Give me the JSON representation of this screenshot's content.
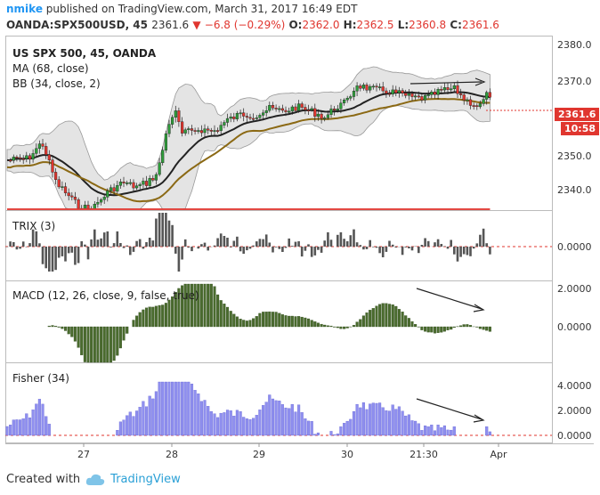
{
  "header": {
    "user": "nmike",
    "published_text": "published on TradingView.com, March 31, 2017 16:49 EDT",
    "symbol_line": "OANDA:SPX500USD, 45",
    "last": "2361.6",
    "change_icon": "triangle-down-icon",
    "change": "−6.8 (−0.29%)",
    "ohlc": [
      {
        "k": "O:",
        "v": "2362.0"
      },
      {
        "k": "H:",
        "v": "2362.5"
      },
      {
        "k": "L:",
        "v": "2360.8"
      },
      {
        "k": "C:",
        "v": "2361.6"
      }
    ]
  },
  "price_pane": {
    "labels": [
      "US SPX 500, 45, OANDA",
      "MA (68, close)",
      "BB (34, close, 2)"
    ],
    "axis_ticks": [
      "2380.0",
      "2370.0",
      "2361.6",
      "2350.0",
      "2340.0"
    ],
    "price_tag": "2361.6",
    "time_tag": "10:58"
  },
  "trix_pane": {
    "label": "TRIX (3)",
    "axis_ticks": [
      "0.0000"
    ]
  },
  "macd_pane": {
    "label": "MACD (12, 26, close, 9, false, true)",
    "axis_ticks": [
      "2.0000",
      "0.0000"
    ]
  },
  "fisher_pane": {
    "label": "Fisher (34)",
    "axis_ticks": [
      "4.0000",
      "2.0000",
      "0.0000"
    ]
  },
  "time_axis": [
    "27",
    "28",
    "29",
    "30",
    "21:30",
    "Apr"
  ],
  "footer": {
    "created_with": "Created with",
    "brand": "TradingView"
  },
  "colors": {
    "up": "#2e9d3a",
    "down": "#e0362f",
    "ma": "#222222",
    "bb": "#8b6914",
    "macd_hist": "#4a6b2e",
    "trix_hist": "#555555",
    "fisher_hist": "#8f8fef",
    "signal": "#e0362f",
    "accent": "#2196f3"
  }
}
